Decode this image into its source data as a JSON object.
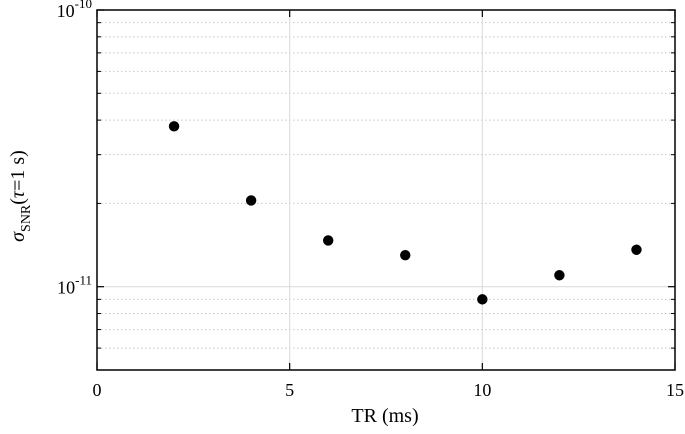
{
  "chart_data": {
    "type": "scatter",
    "title": "",
    "xlabel": "TR (ms)",
    "ylabel": {
      "base": "σ",
      "subscript": "SNR",
      "suffix_open": "(",
      "tau": "τ",
      "equals": "=",
      "value": "1 s",
      "suffix_close": ")"
    },
    "xlim": [
      0,
      15
    ],
    "ylim": [
      5e-12,
      1e-10
    ],
    "yscale": "log",
    "x_ticks": [
      0,
      5,
      10,
      15
    ],
    "x_tick_labels": [
      "0",
      "5",
      "10",
      "15"
    ],
    "y_ticks": [
      1e-11,
      1e-10
    ],
    "y_tick_labels": [
      {
        "base": "10",
        "exp": "-11"
      },
      {
        "base": "10",
        "exp": "-10"
      }
    ],
    "grid": true,
    "points": [
      {
        "x": 2,
        "y": 3.8e-11
      },
      {
        "x": 4,
        "y": 2.05e-11
      },
      {
        "x": 6,
        "y": 1.47e-11
      },
      {
        "x": 8,
        "y": 1.3e-11
      },
      {
        "x": 10,
        "y": 9e-12
      },
      {
        "x": 12,
        "y": 1.1e-11
      },
      {
        "x": 14,
        "y": 1.36e-11
      }
    ],
    "marker_color": "#000000",
    "grid_color": "#d9d9d9"
  }
}
